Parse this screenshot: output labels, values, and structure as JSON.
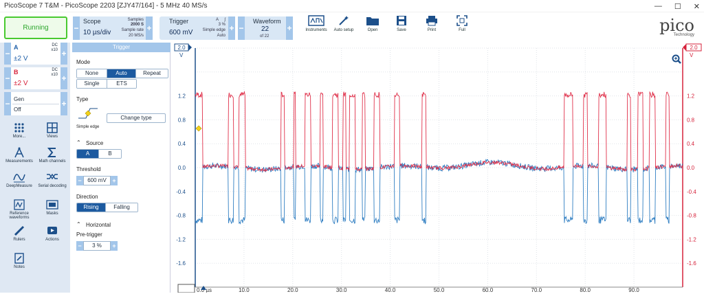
{
  "window": {
    "title": "PicoScope 7 T&M  - PicoScope 2203 [ZJY47/164] - 5 MHz 40 MS/s",
    "min": "—",
    "max": "☐",
    "close": "✕"
  },
  "toolbar": {
    "run_label": "Running",
    "scope": {
      "title": "Scope",
      "value": "10 µs/div",
      "samples_label": "Samples",
      "samples": "2000 S",
      "rate_label": "Sample rate",
      "rate": "20 MS/s"
    },
    "trigger": {
      "title": "Trigger",
      "value": "600 mV",
      "ch": "A",
      "pct": "3 %",
      "type": "Simple edge",
      "mode": "Auto"
    },
    "waveform": {
      "title": "Waveform",
      "value": "22",
      "of": "of 22"
    },
    "tools": [
      {
        "name": "instruments",
        "label": "Instruments",
        "icon": "instruments-icon"
      },
      {
        "name": "auto-setup",
        "label": "Auto setup",
        "icon": "wand-icon"
      },
      {
        "name": "open",
        "label": "Open",
        "icon": "folder-icon"
      },
      {
        "name": "save",
        "label": "Save",
        "icon": "save-icon"
      },
      {
        "name": "print",
        "label": "Print",
        "icon": "print-icon"
      },
      {
        "name": "full",
        "label": "Full",
        "icon": "fullscreen-icon"
      }
    ],
    "logo": {
      "text": "pico",
      "sub": "Technology"
    }
  },
  "channels": [
    {
      "id": "A",
      "coupling": "DC",
      "probe": "x10",
      "range": "±2 V",
      "color": "#1f5fa8"
    },
    {
      "id": "B",
      "coupling": "DC",
      "probe": "x10",
      "range": "±2 V",
      "color": "#d6213a"
    }
  ],
  "gen": {
    "label": "Gen",
    "state": "Off"
  },
  "side_icons": [
    {
      "label": "More...",
      "icon": "grid-dots-icon"
    },
    {
      "label": "Views",
      "icon": "views-icon"
    },
    {
      "label": "Measurements",
      "icon": "compass-icon"
    },
    {
      "label": "Math channels",
      "icon": "sigma-icon"
    },
    {
      "label": "DeepMeasure",
      "icon": "deepmeasure-icon"
    },
    {
      "label": "Serial decoding",
      "icon": "serial-icon"
    },
    {
      "label": "Reference waveforms",
      "icon": "reference-icon"
    },
    {
      "label": "Masks",
      "icon": "mask-icon"
    },
    {
      "label": "Rulers",
      "icon": "ruler-icon"
    },
    {
      "label": "Actions",
      "icon": "actions-icon"
    },
    {
      "label": "Notes",
      "icon": "notes-icon"
    }
  ],
  "panel": {
    "title": "Trigger",
    "mode_label": "Mode",
    "modes": [
      "None",
      "Auto",
      "Repeat",
      "Single",
      "ETS"
    ],
    "mode_selected": "Auto",
    "type_label": "Type",
    "type_name": "Simple edge",
    "change_type": "Change type",
    "source_label": "Source",
    "sources": [
      "A",
      "B"
    ],
    "source_selected": "A",
    "threshold_label": "Threshold",
    "threshold": "600 mV",
    "direction_label": "Direction",
    "directions": [
      "Rising",
      "Falling"
    ],
    "direction_selected": "Rising",
    "horizontal_label": "Horizontal",
    "pretrigger_label": "Pre-trigger",
    "pretrigger": "3 %"
  },
  "chart_data": {
    "type": "line",
    "xlim": [
      0,
      100
    ],
    "ylim": [
      -2,
      2
    ],
    "left_axis": {
      "top": "2.0",
      "unit": "V",
      "ticks": [
        "1.2",
        "0.8",
        "0.4",
        "0.0",
        "-0.4",
        "-0.8",
        "-1.2",
        "-1.6"
      ]
    },
    "right_axis": {
      "top": "2.0",
      "unit": "V",
      "ticks": [
        "1.2",
        "0.8",
        "0.4",
        "0.0",
        "-0.4",
        "-0.8",
        "-1.2",
        "-1.6"
      ]
    },
    "x_ticks": [
      "0.0 µs",
      "10.0",
      "20.0",
      "30.0",
      "40.0",
      "50.0",
      "60.0",
      "70.0",
      "80.0",
      "90.0"
    ],
    "x_tick_values": [
      0,
      10,
      20,
      30,
      40,
      50,
      60,
      70,
      80,
      90
    ],
    "series": [
      {
        "id": "A",
        "color": "#2f7ec2",
        "pulses": [
          [
            -0.2,
            1.5
          ],
          [
            6.8,
            7.9
          ],
          [
            9.0,
            10.3
          ],
          [
            17.6,
            18.3
          ],
          [
            20.2,
            20.6
          ],
          [
            22.5,
            23.7
          ],
          [
            25.6,
            26.2
          ],
          [
            28.1,
            29.3
          ],
          [
            30.3,
            30.9
          ],
          [
            31.6,
            32.8
          ],
          [
            34.3,
            34.9
          ],
          [
            36.7,
            37.8
          ],
          [
            40.8,
            41.9
          ],
          [
            46.5,
            47.3
          ],
          [
            75.6,
            77.5
          ],
          [
            79.6,
            80.5
          ],
          [
            82.8,
            84.3
          ],
          [
            88.6,
            89.4
          ],
          [
            90.8,
            91.9
          ],
          [
            93.2,
            94.4
          ],
          [
            96.6,
            97.3
          ]
        ],
        "high": 1.22,
        "low": -0.88,
        "idle": 0.0
      }
    ]
  }
}
